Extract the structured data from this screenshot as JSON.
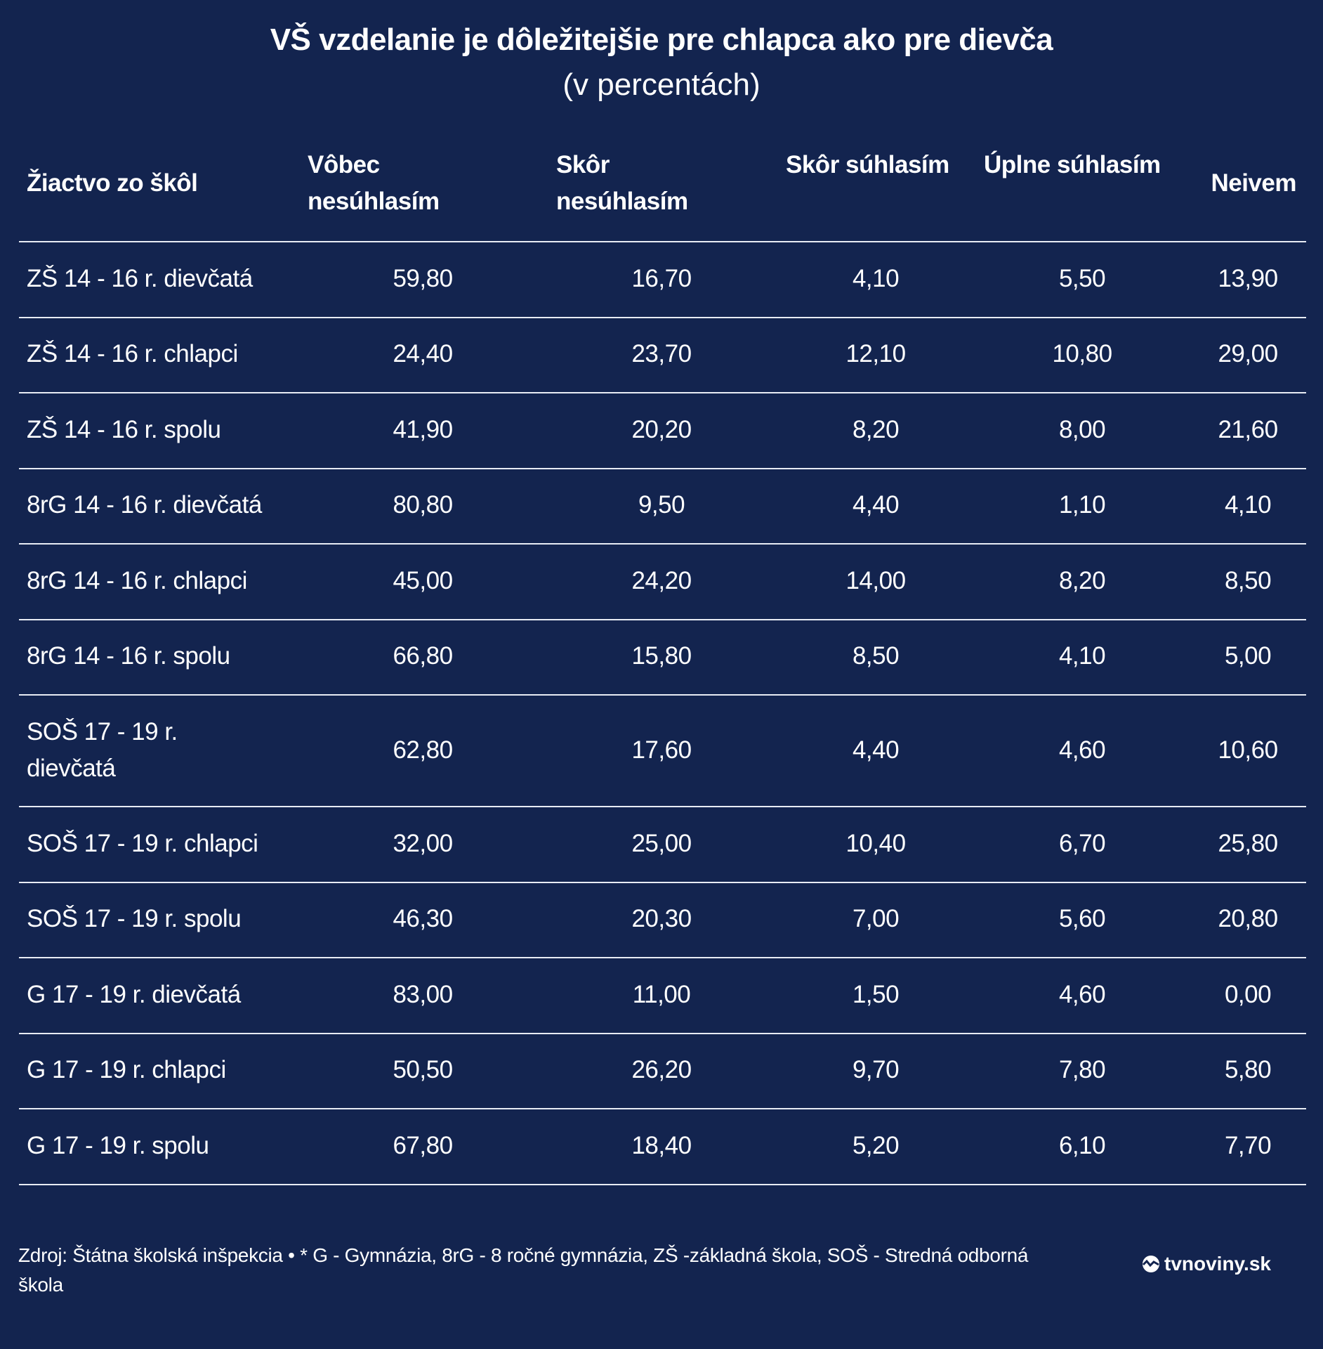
{
  "title": "VŠ vzdelanie je dôležitejšie pre chlapca ako pre dievča",
  "subtitle": "(v percentách)",
  "chart_data": {
    "type": "table",
    "columns": [
      "Žiactvo zo škôl",
      "Vôbec nesúhlasím",
      "Skôr nesúhlasím",
      "Skôr súhlasím",
      "Úplne súhlasím",
      "Neivem"
    ],
    "rows": [
      [
        "ZŠ 14 - 16 r. dievčatá",
        "59,80",
        "16,70",
        "4,10",
        "5,50",
        "13,90"
      ],
      [
        "ZŠ 14 - 16 r. chlapci",
        "24,40",
        "23,70",
        "12,10",
        "10,80",
        "29,00"
      ],
      [
        "ZŠ 14 - 16 r. spolu",
        "41,90",
        "20,20",
        "8,20",
        "8,00",
        "21,60"
      ],
      [
        "8rG 14 - 16 r. dievčatá",
        "80,80",
        "9,50",
        "4,40",
        "1,10",
        "4,10"
      ],
      [
        "8rG 14 - 16 r. chlapci",
        "45,00",
        "24,20",
        "14,00",
        "8,20",
        "8,50"
      ],
      [
        "8rG 14 - 16 r. spolu",
        "66,80",
        "15,80",
        "8,50",
        "4,10",
        "5,00"
      ],
      [
        "SOŠ 17 - 19 r. dievčatá",
        "62,80",
        "17,60",
        "4,40",
        "4,60",
        "10,60"
      ],
      [
        "SOŠ 17 - 19 r. chlapci",
        "32,00",
        "25,00",
        "10,40",
        "6,70",
        "25,80"
      ],
      [
        "SOŠ 17 - 19 r. spolu",
        "46,30",
        "20,30",
        "7,00",
        "5,60",
        "20,80"
      ],
      [
        "G 17 - 19 r. dievčatá",
        "83,00",
        "11,00",
        "1,50",
        "4,60",
        "0,00"
      ],
      [
        "G 17 - 19 r. chlapci",
        "50,50",
        "26,20",
        "9,70",
        "7,80",
        "5,80"
      ],
      [
        "G 17 - 19 r. spolu",
        "67,80",
        "18,40",
        "5,20",
        "6,10",
        "7,70"
      ]
    ]
  },
  "footer": "Zdroj: Štátna školská inšpekcia • * G - Gymnázia, 8rG - 8 ročné gymnázia, ZŠ -základná škola, SOŠ - Stredná odborná škola",
  "logo": "tvnoviny.sk",
  "colors": {
    "background": "#13244f",
    "text": "#ffffff",
    "rule": "#e8ecf4"
  }
}
